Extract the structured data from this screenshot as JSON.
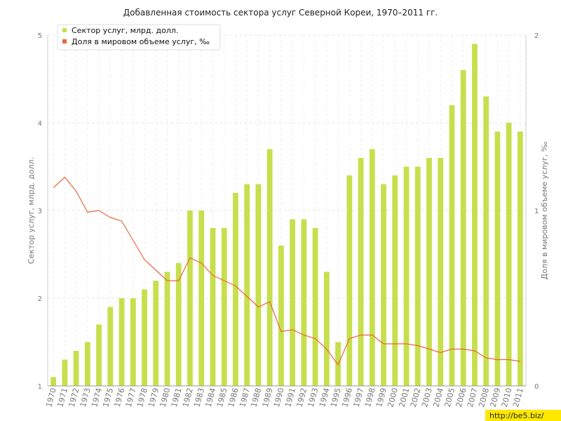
{
  "chart_data": {
    "type": "bar",
    "title": "Добавленная стоимость сектора услуг Северной Кореи, 1970–2011 гг.",
    "ylabel": "Сектор услуг, млрд. долл.",
    "y2label": "Доля в мировом объеме услуг, ‰",
    "ylim": [
      1,
      5
    ],
    "y2lim": [
      0,
      2
    ],
    "yticks": [
      "1",
      "2",
      "3",
      "4",
      "5"
    ],
    "y2ticks": [
      "0",
      "1",
      "2"
    ],
    "grid": true,
    "legend_position": "top-left",
    "categories": [
      "1970",
      "1971",
      "1972",
      "1973",
      "1974",
      "1975",
      "1976",
      "1977",
      "1978",
      "1979",
      "1980",
      "1981",
      "1982",
      "1983",
      "1984",
      "1985",
      "1986",
      "1987",
      "1988",
      "1989",
      "1990",
      "1991",
      "1992",
      "1993",
      "1994",
      "1995",
      "1996",
      "1997",
      "1998",
      "1999",
      "2000",
      "2001",
      "2002",
      "2003",
      "2004",
      "2005",
      "2006",
      "2007",
      "2008",
      "2009",
      "2010",
      "2011"
    ],
    "series": [
      {
        "name": "Сектор услуг, млрд. долл.",
        "type": "bar",
        "axis": "left",
        "color": "#c7df4c",
        "values": [
          1.1,
          1.3,
          1.4,
          1.5,
          1.7,
          1.9,
          2.0,
          2.0,
          2.1,
          2.2,
          2.3,
          2.4,
          3.0,
          3.0,
          2.8,
          2.8,
          3.2,
          3.3,
          3.3,
          3.7,
          2.6,
          2.9,
          2.9,
          2.8,
          2.3,
          1.5,
          3.4,
          3.6,
          3.7,
          3.3,
          3.4,
          3.5,
          3.5,
          3.6,
          3.6,
          4.2,
          4.6,
          4.9,
          4.3,
          3.9,
          4.0,
          3.9
        ]
      },
      {
        "name": "Доля в мировом объеме услуг, ‰",
        "type": "line",
        "axis": "right",
        "color": "#e8673c",
        "values": [
          1.13,
          1.19,
          1.11,
          0.99,
          1.0,
          0.96,
          0.94,
          0.83,
          0.72,
          0.66,
          0.6,
          0.6,
          0.73,
          0.7,
          0.63,
          0.6,
          0.57,
          0.51,
          0.45,
          0.48,
          0.31,
          0.32,
          0.29,
          0.27,
          0.21,
          0.12,
          0.27,
          0.29,
          0.29,
          0.24,
          0.24,
          0.24,
          0.23,
          0.21,
          0.19,
          0.21,
          0.21,
          0.2,
          0.16,
          0.15,
          0.15,
          0.14
        ]
      }
    ]
  },
  "watermark": "http://be5.biz/"
}
